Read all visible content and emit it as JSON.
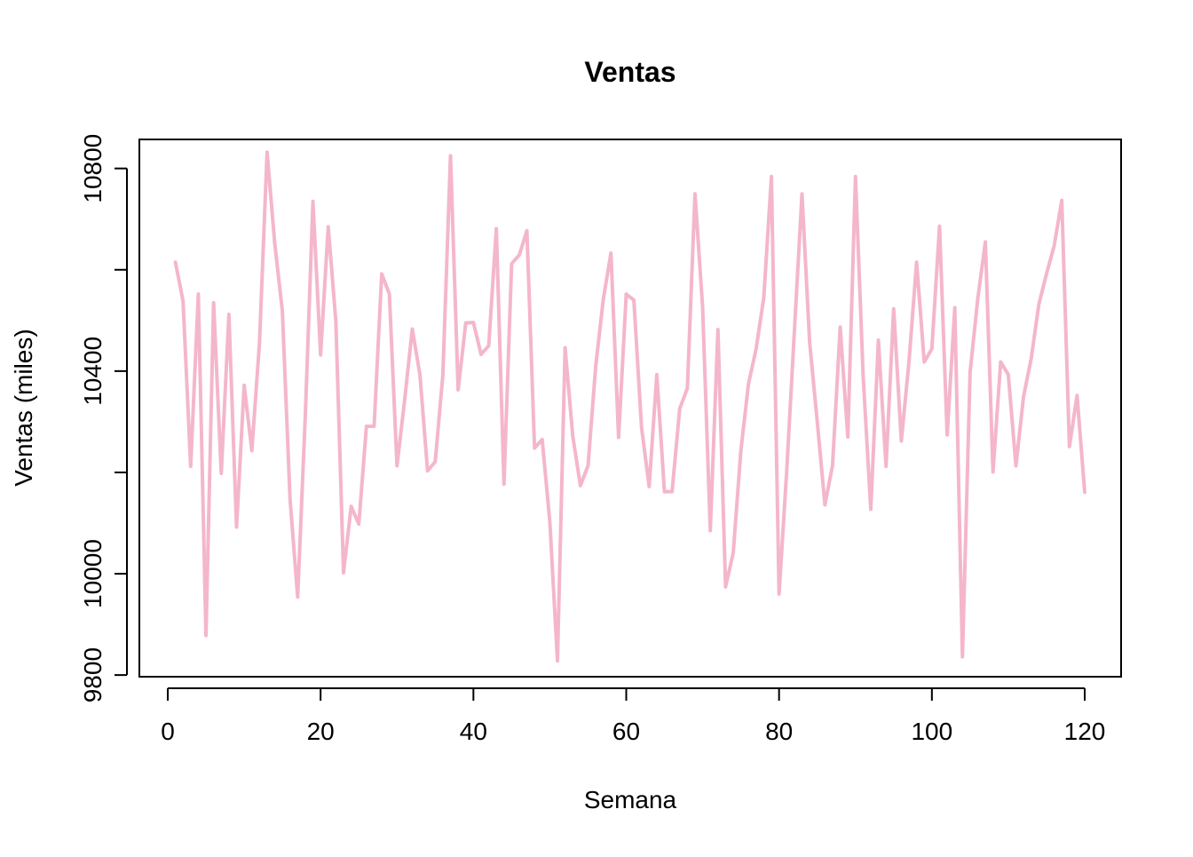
{
  "chart_data": {
    "type": "line",
    "title": "Ventas",
    "xlabel": "Semana",
    "ylabel": "Ventas (miles)",
    "xlim": [
      1,
      120
    ],
    "ylim": [
      9816,
      10838
    ],
    "xticks": [
      0,
      20,
      40,
      60,
      80,
      100,
      120
    ],
    "yticks": [
      9800,
      10000,
      10400,
      10800
    ],
    "grid": false,
    "legend": "none",
    "line_color": "#F4B6CC",
    "series": [
      {
        "x": [
          1,
          2,
          3,
          4,
          5,
          6,
          7,
          8,
          9,
          10,
          11,
          12,
          13,
          14,
          15,
          16,
          17,
          18,
          19,
          20,
          21,
          22,
          23,
          24,
          25,
          26,
          27,
          28,
          29,
          30,
          31,
          32,
          33,
          34,
          35,
          36,
          37,
          38,
          39,
          40,
          41,
          42,
          43,
          44,
          45,
          46,
          47,
          48,
          49,
          50,
          51,
          52,
          53,
          54,
          55,
          56,
          57,
          58,
          59,
          60,
          61,
          62,
          63,
          64,
          65,
          66,
          67,
          68,
          69,
          70,
          71,
          72,
          73,
          74,
          75,
          76,
          77,
          78,
          79,
          80,
          81,
          82,
          83,
          84,
          85,
          86,
          87,
          88,
          89,
          90,
          91,
          92,
          93,
          94,
          95,
          96,
          97,
          98,
          99,
          100,
          101,
          102,
          103,
          104,
          105,
          106,
          107,
          108,
          109,
          110,
          111,
          112,
          113,
          114,
          115,
          116,
          117,
          118,
          119,
          120
        ],
        "values": [
          10615,
          10538,
          10212,
          10552,
          9878,
          10535,
          10198,
          10512,
          10092,
          10372,
          10243,
          10455,
          10832,
          10652,
          10518,
          10148,
          9954,
          10312,
          10735,
          10432,
          10685,
          10498,
          10002,
          10133,
          10098,
          10291,
          10291,
          10592,
          10552,
          10213,
          10343,
          10483,
          10393,
          10203,
          10221,
          10392,
          10825,
          10363,
          10495,
          10496,
          10433,
          10450,
          10681,
          10177,
          10612,
          10629,
          10677,
          10248,
          10265,
          10103,
          9828,
          10446,
          10272,
          10174,
          10213,
          10409,
          10542,
          10633,
          10269,
          10552,
          10540,
          10289,
          10172,
          10393,
          10162,
          10162,
          10326,
          10366,
          10750,
          10525,
          10085,
          10482,
          9974,
          10041,
          10243,
          10375,
          10444,
          10545,
          10784,
          9960,
          10203,
          10477,
          10750,
          10457,
          10300,
          10136,
          10214,
          10487,
          10270,
          10784,
          10392,
          10127,
          10461,
          10212,
          10523,
          10262,
          10418,
          10615,
          10418,
          10444,
          10686,
          10274,
          10525,
          9836,
          10398,
          10542,
          10655,
          10201,
          10418,
          10393,
          10213,
          10350,
          10425,
          10532,
          10592,
          10647,
          10737,
          10251,
          10352,
          10161
        ]
      }
    ]
  }
}
